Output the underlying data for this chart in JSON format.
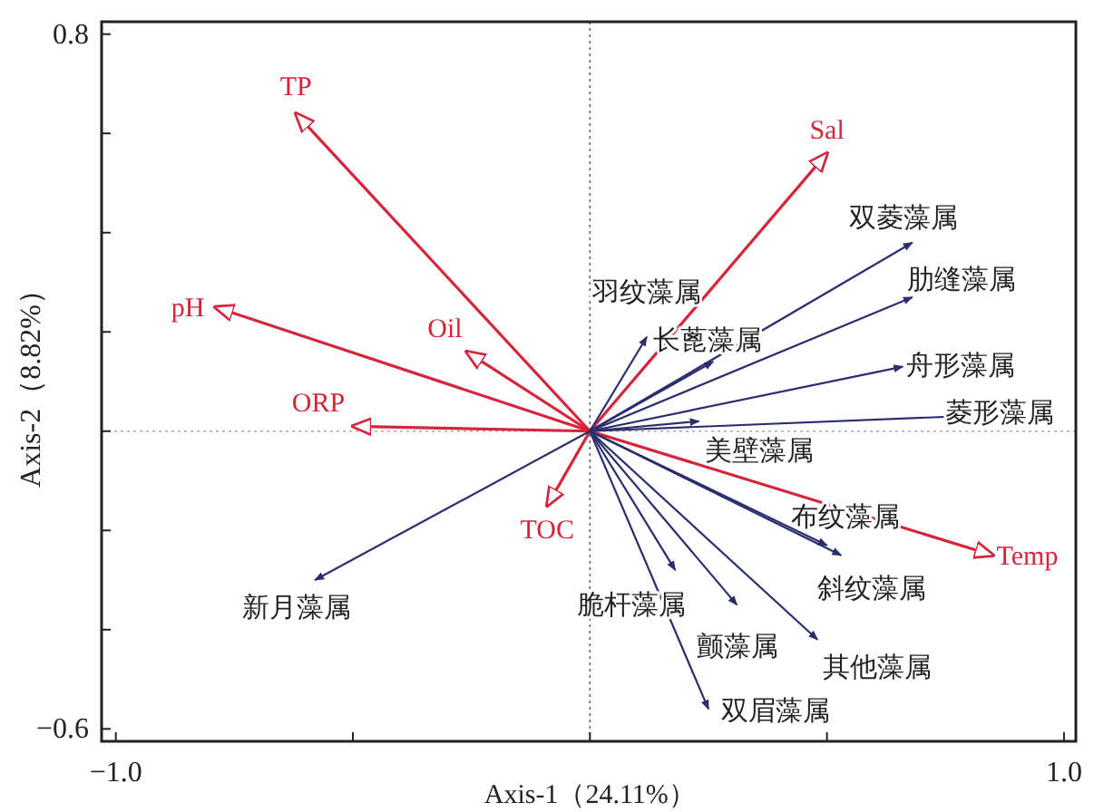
{
  "chart_data": {
    "type": "line",
    "xlabel": "Axis-1（24.11%）",
    "ylabel": "Axis-2（8.82%）",
    "xlim": [
      -1.03,
      1.025
    ],
    "ylim": [
      -0.625,
      0.825
    ],
    "xticks": [
      {
        "value": -1,
        "label": "−1.0"
      },
      {
        "value": -0.5,
        "label": null
      },
      {
        "value": 0,
        "label": null
      },
      {
        "value": 0.5,
        "label": null
      },
      {
        "value": 1,
        "label": "1.0"
      }
    ],
    "yticks": [
      {
        "value": -0.6,
        "label": "−0.6"
      },
      {
        "value": -0.4,
        "label": null
      },
      {
        "value": -0.2,
        "label": null
      },
      {
        "value": 0,
        "label": null
      },
      {
        "value": 0.2,
        "label": null
      },
      {
        "value": 0.4,
        "label": null
      },
      {
        "value": 0.6,
        "label": null
      },
      {
        "value": 0.8,
        "label": "0.8"
      }
    ],
    "ref_lines": [
      {
        "axis": "x",
        "value": 0,
        "color": "#666666",
        "line_style": "dotted"
      },
      {
        "axis": "y",
        "value": 0,
        "color": "#aaaaaa",
        "line_style": "dotted"
      }
    ],
    "grid": false,
    "series": [
      {
        "name": "TP",
        "color": "#d6253a",
        "x": [
          0,
          -0.62
        ],
        "values": [
          0,
          0.64
        ]
      },
      {
        "name": "pH",
        "color": "#d6253a",
        "x": [
          0,
          -0.79
        ],
        "values": [
          0,
          0.25
        ]
      },
      {
        "name": "Oil",
        "color": "#d6253a",
        "x": [
          0,
          -0.26
        ],
        "values": [
          0,
          0.16
        ]
      },
      {
        "name": "ORP",
        "color": "#d6253a",
        "x": [
          0,
          -0.5
        ],
        "values": [
          0,
          0.01
        ]
      },
      {
        "name": "TOC",
        "color": "#d6253a",
        "x": [
          0,
          -0.09
        ],
        "values": [
          0,
          -0.15
        ]
      },
      {
        "name": "Sal",
        "color": "#d6253a",
        "x": [
          0,
          0.5
        ],
        "values": [
          0,
          0.56
        ]
      },
      {
        "name": "Temp",
        "color": "#d6253a",
        "x": [
          0,
          0.85
        ],
        "values": [
          0,
          -0.25
        ]
      },
      {
        "name": "新月藻属",
        "color": "#2b2e6e",
        "x": [
          0,
          -0.58
        ],
        "values": [
          0,
          -0.3
        ]
      },
      {
        "name": "羽纹藻属",
        "color": "#2b2e6e",
        "x": [
          0,
          0.12
        ],
        "values": [
          0,
          0.19
        ]
      },
      {
        "name": "长蓖藻属",
        "color": "#2b2e6e",
        "x": [
          0,
          0.26
        ],
        "values": [
          0,
          0.14
        ]
      },
      {
        "name": "双菱藻属",
        "color": "#2b2e6e",
        "x": [
          0,
          0.68
        ],
        "values": [
          0,
          0.38
        ]
      },
      {
        "name": "肋缝藻属",
        "color": "#2b2e6e",
        "x": [
          0,
          0.68
        ],
        "values": [
          0,
          0.27
        ]
      },
      {
        "name": "舟形藻属",
        "color": "#2b2e6e",
        "x": [
          0,
          0.66
        ],
        "values": [
          0,
          0.13
        ]
      },
      {
        "name": "菱形藻属",
        "color": "#2b2e6e",
        "x": [
          0,
          0.78
        ],
        "values": [
          0,
          0.03
        ]
      },
      {
        "name": "美壁藻属",
        "color": "#2b2e6e",
        "x": [
          0,
          0.23
        ],
        "values": [
          0,
          0.02
        ]
      },
      {
        "name": "布纹藻属",
        "color": "#2b2e6e",
        "x": [
          0,
          0.5
        ],
        "values": [
          0,
          -0.23
        ]
      },
      {
        "name": "斜纹藻属",
        "color": "#2b2e6e",
        "x": [
          0,
          0.53
        ],
        "values": [
          0,
          -0.25
        ]
      },
      {
        "name": "脆杆藻属",
        "color": "#2b2e6e",
        "x": [
          0,
          0.18
        ],
        "values": [
          0,
          -0.28
        ]
      },
      {
        "name": "颤藻属",
        "color": "#2b2e6e",
        "x": [
          0,
          0.31
        ],
        "values": [
          0,
          -0.35
        ]
      },
      {
        "name": "其他藻属",
        "color": "#2b2e6e",
        "x": [
          0,
          0.48
        ],
        "values": [
          0,
          -0.42
        ]
      },
      {
        "name": "双眉藻属",
        "color": "#2b2e6e",
        "x": [
          0,
          0.25
        ],
        "values": [
          0,
          -0.56
        ]
      }
    ]
  }
}
